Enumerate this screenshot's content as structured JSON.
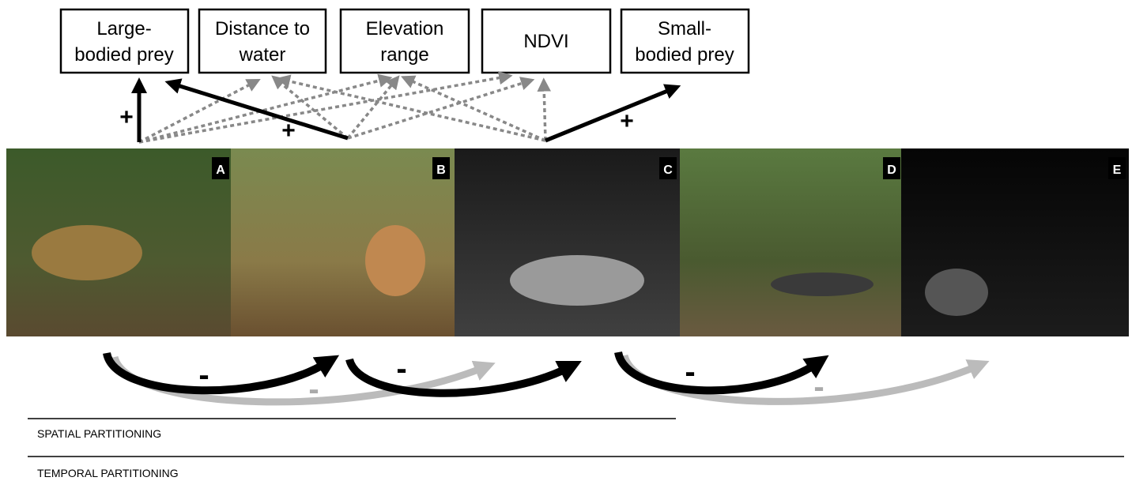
{
  "boxes": [
    {
      "lines": [
        "Large-",
        "bodied prey"
      ]
    },
    {
      "lines": [
        "Distance to",
        "water"
      ]
    },
    {
      "lines": [
        "Elevation",
        "range"
      ]
    },
    {
      "lines": [
        "NDVI"
      ]
    },
    {
      "lines": [
        "Small-",
        "bodied prey"
      ]
    }
  ],
  "signs": {
    "plus": [
      "+",
      "+",
      "+"
    ],
    "minus": [
      "-",
      "-",
      "-",
      "-",
      "-"
    ]
  },
  "panels": [
    {
      "letter": "A"
    },
    {
      "letter": "B"
    },
    {
      "letter": "C"
    },
    {
      "letter": "D"
    },
    {
      "letter": "E"
    }
  ],
  "sections": [
    "SPATIAL PARTITIONING",
    "TEMPORAL PARTITIONING"
  ]
}
